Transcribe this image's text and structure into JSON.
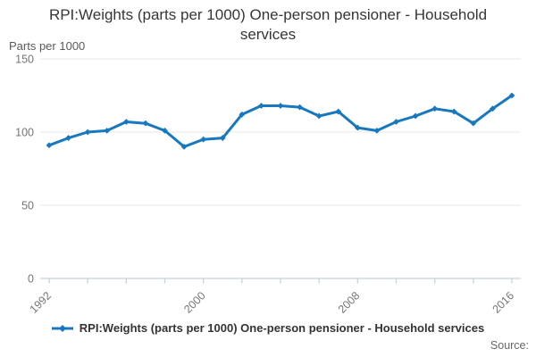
{
  "header": {
    "title": "RPI:Weights (parts per 1000) One-person pensioner - Household services"
  },
  "axes": {
    "y_unit_label": "Parts per 1000",
    "y_tick_labels": [
      "0",
      "50",
      "100",
      "150"
    ],
    "x_tick_labels": [
      "1992",
      "2000",
      "2008",
      "2016"
    ]
  },
  "legend": {
    "label": "RPI:Weights (parts per 1000) One-person pensioner - Household services",
    "marker_icon": "line-diamond-marker-icon"
  },
  "footer": {
    "source_label": "Source:"
  },
  "colors": {
    "series_line": "#1878bf",
    "gridline": "#e7e7e7",
    "axis_line": "#c8d2dd",
    "title_text": "#363636",
    "tick_label_text": "#757575",
    "unit_label_text": "#595959",
    "legend_text": "#333333",
    "source_text": "#666666"
  },
  "chart_data": {
    "type": "line",
    "title": "RPI:Weights (parts per 1000) One-person pensioner - Household services",
    "series_name": "RPI:Weights (parts per 1000) One-person pensioner - Household services",
    "xlabel": "",
    "ylabel": "Parts per 1000",
    "x": [
      1992,
      1993,
      1994,
      1995,
      1996,
      1997,
      1998,
      1999,
      2000,
      2001,
      2002,
      2003,
      2004,
      2005,
      2006,
      2007,
      2008,
      2009,
      2010,
      2011,
      2012,
      2013,
      2014,
      2015,
      2016
    ],
    "values": [
      91,
      96,
      100,
      101,
      107,
      106,
      101,
      90,
      95,
      96,
      112,
      118,
      118,
      117,
      111,
      114,
      103,
      101,
      107,
      111,
      116,
      114,
      106,
      116,
      125
    ],
    "ylim": [
      0,
      150
    ],
    "xlim": [
      1992,
      2016
    ],
    "yticks": [
      0,
      50,
      100,
      150
    ],
    "xticks_step_years": 2,
    "xtick_labeled_years": [
      1992,
      2000,
      2008,
      2016
    ],
    "grid": "horizontal",
    "marker": "diamond",
    "legend_position": "bottom"
  }
}
